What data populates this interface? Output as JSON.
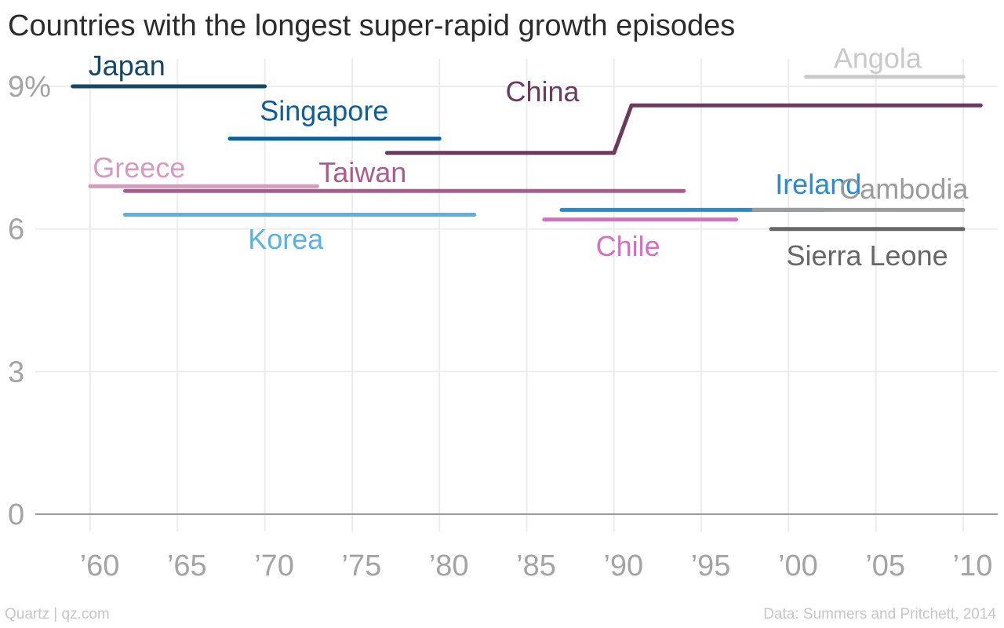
{
  "chart_data": {
    "type": "line",
    "title": "Countries with the longest super-rapid growth episodes",
    "xlabel": "",
    "ylabel": "",
    "xlim": [
      1958,
      2011
    ],
    "ylim": [
      0,
      9.9
    ],
    "x_ticks": [
      1960,
      1965,
      1970,
      1975,
      1980,
      1985,
      1990,
      1995,
      2000,
      2005,
      2010
    ],
    "x_tick_labels": [
      "’60",
      "’65",
      "’70",
      "’75",
      "’80",
      "’85",
      "’90",
      "’95",
      "’00",
      "’05",
      "’10"
    ],
    "y_ticks": [
      0,
      3,
      6,
      9
    ],
    "y_tick_labels": [
      "0",
      "3",
      "6",
      "9%"
    ],
    "grid": true,
    "legend": "none (series labeled directly on the chart)",
    "series": [
      {
        "name": "Japan",
        "color": "#14466a",
        "x": [
          1959,
          1970
        ],
        "y": [
          9.0,
          9.0
        ]
      },
      {
        "name": "Singapore",
        "color": "#0f5e95",
        "x": [
          1968,
          1980
        ],
        "y": [
          7.9,
          7.9
        ]
      },
      {
        "name": "China",
        "color": "#6b3a5f",
        "x": [
          1977,
          1990,
          1991,
          2011
        ],
        "y": [
          7.6,
          7.6,
          8.6,
          8.6
        ]
      },
      {
        "name": "Angola",
        "color": "#c9c9c9",
        "x": [
          2001,
          2010
        ],
        "y": [
          9.2,
          9.2
        ]
      },
      {
        "name": "Greece",
        "color": "#d49bbf",
        "x": [
          1960,
          1973
        ],
        "y": [
          6.9,
          6.9
        ]
      },
      {
        "name": "Taiwan",
        "color": "#ad5a8c",
        "x": [
          1962,
          1994
        ],
        "y": [
          6.8,
          6.8
        ]
      },
      {
        "name": "Ireland",
        "color": "#2a8ad0",
        "x": [
          1987,
          2002
        ],
        "y": [
          6.4,
          6.4
        ]
      },
      {
        "name": "Cambodia",
        "color": "#9b9b9b",
        "x": [
          1998,
          2010
        ],
        "y": [
          6.4,
          6.4
        ]
      },
      {
        "name": "Korea",
        "color": "#58b3e3",
        "x": [
          1962,
          1982
        ],
        "y": [
          6.3,
          6.3
        ]
      },
      {
        "name": "Chile",
        "color": "#d66fc0",
        "x": [
          1986,
          1997
        ],
        "y": [
          6.2,
          6.2
        ]
      },
      {
        "name": "Sierra Leone",
        "color": "#666666",
        "x": [
          1999,
          2010
        ],
        "y": [
          6.0,
          6.0
        ]
      }
    ],
    "annotations": [
      {
        "text": "Japan",
        "series": "Japan",
        "x": 1962.1,
        "y": 9.45
      },
      {
        "text": "Singapore",
        "series": "Singapore",
        "x": 1973.4,
        "y": 8.5
      },
      {
        "text": "China",
        "series": "China",
        "x": 1985.9,
        "y": 8.9
      },
      {
        "text": "Angola",
        "series": "Angola",
        "x": 2005.1,
        "y": 9.6
      },
      {
        "text": "Greece",
        "series": "Greece",
        "x": 1962.8,
        "y": 7.3
      },
      {
        "text": "Taiwan",
        "series": "Taiwan",
        "x": 1975.6,
        "y": 7.2
      },
      {
        "text": "Ireland",
        "series": "Ireland",
        "x": 2001.7,
        "y": 6.95
      },
      {
        "text": "Cambodia",
        "series": "Cambodia",
        "x": 2006.6,
        "y": 6.85
      },
      {
        "text": "Korea",
        "series": "Korea",
        "x": 1971.2,
        "y": 5.8
      },
      {
        "text": "Chile",
        "series": "Chile",
        "x": 1990.8,
        "y": 5.65
      },
      {
        "text": "Sierra Leone",
        "series": "Sierra Leone",
        "x": 2004.5,
        "y": 5.45
      }
    ]
  },
  "footer": {
    "source_left": "Quartz | qz.com",
    "source_right": "Data: Summers and Pritchett, 2014"
  },
  "colors": {
    "title": "#2b2b2b",
    "tick_label": "#a3a3a3",
    "grid": "#ececec",
    "zero_line": "#9a9a9a",
    "footer": "#c6c6c6"
  }
}
